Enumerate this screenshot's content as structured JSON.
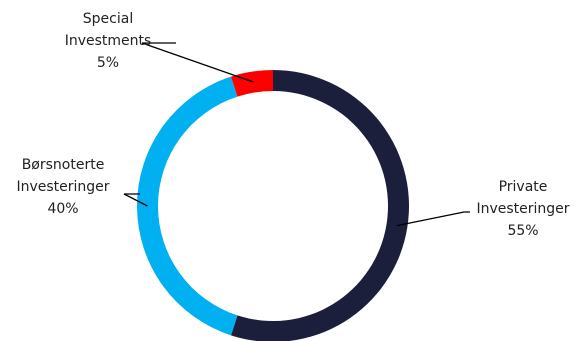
{
  "chart_data": {
    "type": "pie",
    "style": "donut",
    "slices": [
      {
        "key": "private",
        "label_lines": [
          "Private",
          "Investeringer"
        ],
        "percent_label": "55%",
        "value": 55,
        "color": "#1b1f3b"
      },
      {
        "key": "listed",
        "label_lines": [
          "Børsnoterte",
          "Investeringer"
        ],
        "percent_label": "40%",
        "value": 40,
        "color": "#00b0f0"
      },
      {
        "key": "special",
        "label_lines": [
          "Special",
          "Investments"
        ],
        "percent_label": "5%",
        "value": 5,
        "color": "#ff0000"
      }
    ],
    "legend": "none",
    "data_labels": "outside with leader lines"
  }
}
